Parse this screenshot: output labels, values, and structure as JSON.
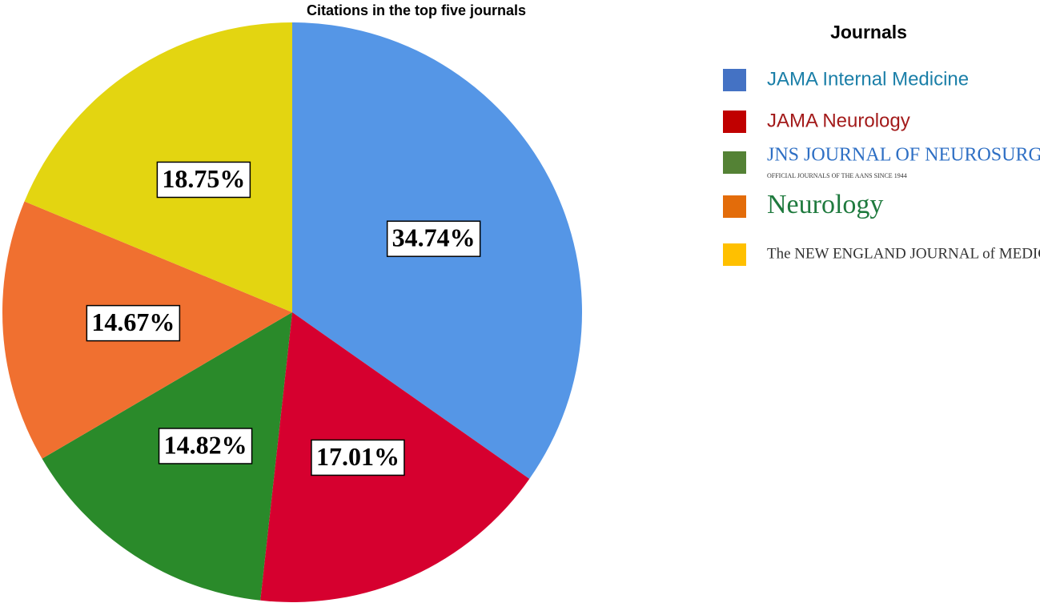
{
  "chart_data": {
    "type": "pie",
    "title": "Citations in the top five journals",
    "legend_title": "Journals",
    "categories": [
      "JAMA Internal Medicine",
      "JAMA Neurology",
      "JNS JOURNAL OF NEUROSURGERY",
      "Neurology",
      "The NEW ENGLAND JOURNAL of MEDICINE"
    ],
    "legend_tagline": "OFFICIAL JOURNALS OF THE AANS SINCE 1944",
    "values": [
      34.74,
      17.01,
      14.82,
      14.67,
      18.75
    ],
    "value_labels": [
      "34.74%",
      "17.01%",
      "14.82%",
      "14.67%",
      "18.75%"
    ],
    "colors": [
      "#5596e6",
      "#d6002f",
      "#2a8a2a",
      "#f07030",
      "#e3d511"
    ],
    "legend_colors": [
      "#4472c4",
      "#c00000",
      "#548235",
      "#e36c0a",
      "#ffc000"
    ],
    "legend_text_colors": [
      "#1b7fa8",
      "#a31a1a",
      "#2e6fc4",
      "#1f7a3e",
      "#333333"
    ]
  }
}
